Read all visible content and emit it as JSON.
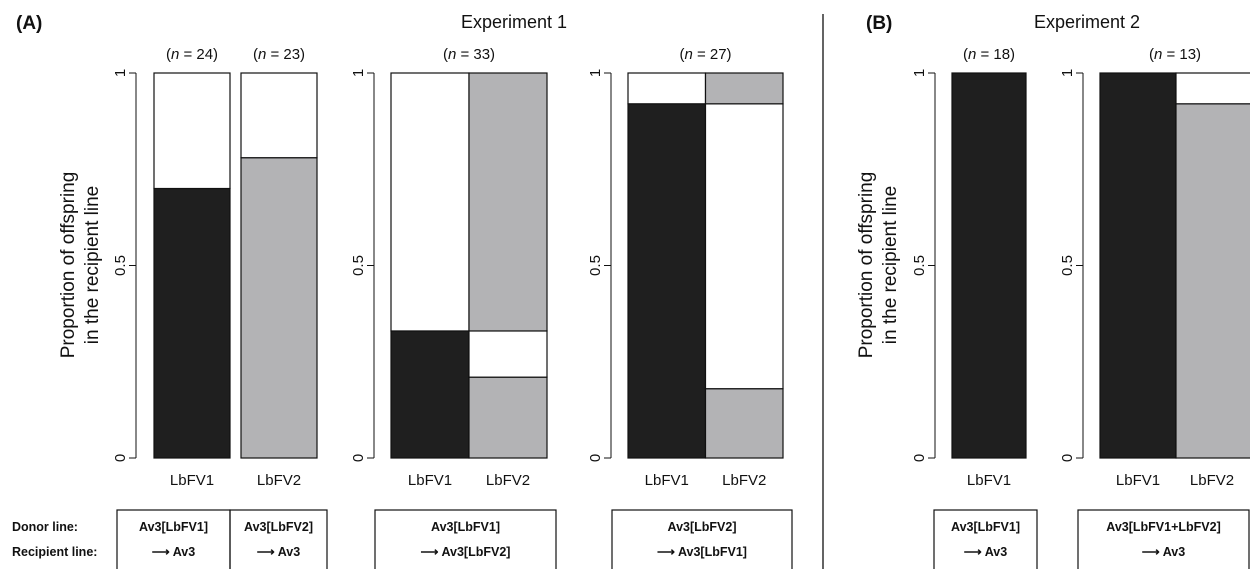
{
  "panels": {
    "A": {
      "label": "(A)",
      "title": "Experiment 1"
    },
    "B": {
      "label": "(B)",
      "title": "Experiment 2"
    }
  },
  "y_axis": {
    "label_line1": "Proportion of offspring",
    "label_line2": "in the recipient line",
    "ticks": [
      "0",
      "0.5",
      "1"
    ]
  },
  "row_labels": {
    "donor": "Donor line:",
    "recipient": "Recipient line:"
  },
  "colors": {
    "LbFV1": "#1f1f1f",
    "LbFV2": "#b3b3b5",
    "none": "#ffffff",
    "outline": "#111111"
  },
  "chart_data": [
    {
      "type": "bar",
      "panel": "A",
      "n_label": "(n = 24)",
      "categories": [
        "LbFV1"
      ],
      "segments": [
        {
          "from": 0,
          "to": 0.7,
          "fill": "LbFV1"
        },
        {
          "from": 0.7,
          "to": 1,
          "fill": "none"
        }
      ],
      "ylim": [
        0,
        1
      ],
      "donor_line": "Av3[LbFV1]",
      "recipient_line": "⟶ Av3"
    },
    {
      "type": "bar",
      "panel": "A",
      "n_label": "(n = 23)",
      "categories": [
        "LbFV2"
      ],
      "segments": [
        {
          "from": 0,
          "to": 0.78,
          "fill": "LbFV2"
        },
        {
          "from": 0.78,
          "to": 1,
          "fill": "none"
        }
      ],
      "ylim": [
        0,
        1
      ],
      "donor_line": "Av3[LbFV2]",
      "recipient_line": "⟶ Av3"
    },
    {
      "type": "bar",
      "panel": "A",
      "n_label": "(n = 33)",
      "categories": [
        "LbFV1",
        "LbFV2"
      ],
      "mosaic": true,
      "widths": [
        0.33,
        0.67
      ],
      "columns": [
        [
          {
            "from": 0,
            "to": 0.33,
            "fill": "LbFV1"
          },
          {
            "from": 0.33,
            "to": 1,
            "fill": "none"
          }
        ],
        [
          {
            "from": 0,
            "to": 0.21,
            "fill": "LbFV2"
          },
          {
            "from": 0.21,
            "to": 0.33,
            "fill": "none"
          },
          {
            "from": 0.33,
            "to": 1,
            "fill": "LbFV2"
          }
        ]
      ],
      "ylim": [
        0,
        1
      ],
      "donor_line": "Av3[LbFV1]",
      "recipient_line": "⟶ Av3[LbFV2]"
    },
    {
      "type": "bar",
      "panel": "A",
      "n_label": "(n = 27)",
      "categories": [
        "LbFV1",
        "LbFV2"
      ],
      "mosaic": true,
      "widths": [
        0.92,
        0.08
      ],
      "columns": [
        [
          {
            "from": 0,
            "to": 0.92,
            "fill": "LbFV1"
          },
          {
            "from": 0.92,
            "to": 1,
            "fill": "none"
          }
        ],
        [
          {
            "from": 0,
            "to": 0.18,
            "fill": "LbFV2"
          },
          {
            "from": 0.18,
            "to": 0.92,
            "fill": "none"
          },
          {
            "from": 0.92,
            "to": 1,
            "fill": "LbFV2"
          }
        ]
      ],
      "ylim": [
        0,
        1
      ],
      "donor_line": "Av3[LbFV2]",
      "recipient_line": "⟶ Av3[LbFV1]"
    },
    {
      "type": "bar",
      "panel": "B",
      "n_label": "(n = 18)",
      "categories": [
        "LbFV1"
      ],
      "segments": [
        {
          "from": 0,
          "to": 1,
          "fill": "LbFV1"
        }
      ],
      "ylim": [
        0,
        1
      ],
      "donor_line": "Av3[LbFV1]",
      "recipient_line": "⟶ Av3"
    },
    {
      "type": "bar",
      "panel": "B",
      "n_label": "(n = 13)",
      "categories": [
        "LbFV1",
        "LbFV2"
      ],
      "mosaic": true,
      "widths": [
        1,
        1
      ],
      "columns": [
        [
          {
            "from": 0,
            "to": 1,
            "fill": "LbFV1"
          }
        ],
        [
          {
            "from": 0,
            "to": 0.92,
            "fill": "LbFV2"
          },
          {
            "from": 0.92,
            "to": 1,
            "fill": "none"
          }
        ]
      ],
      "ylim": [
        0,
        1
      ],
      "donor_line": "Av3[LbFV1+LbFV2]",
      "recipient_line": "⟶ Av3"
    }
  ]
}
